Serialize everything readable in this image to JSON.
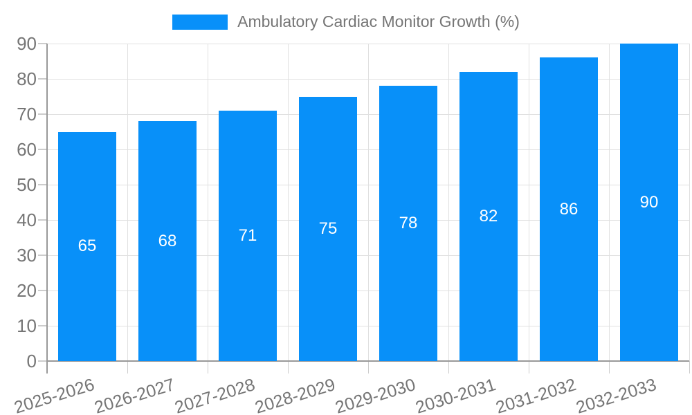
{
  "legend": {
    "label": "Ambulatory Cardiac Monitor Growth (%)"
  },
  "colors": {
    "bar": "#0890f9",
    "bar_value_label": "#ffffff",
    "grid": "#e0e0e0",
    "tick": "#cccccc",
    "axis": "#999999",
    "text": "#757575",
    "background": "#ffffff"
  },
  "chart_data": {
    "type": "bar",
    "categories": [
      "2025-2026",
      "2026-2027",
      "2027-2028",
      "2028-2029",
      "2029-2030",
      "2030-2031",
      "2031-2032",
      "2032-2033"
    ],
    "values": [
      65,
      68,
      71,
      75,
      78,
      82,
      86,
      90
    ],
    "title": "",
    "xlabel": "",
    "ylabel": "",
    "legend": "Ambulatory Cardiac Monitor Growth (%)",
    "legend_position": "top-center",
    "ylim": [
      0,
      90
    ],
    "ytick_step": 10,
    "yticks": [
      0,
      10,
      20,
      30,
      40,
      50,
      60,
      70,
      80,
      90
    ],
    "grid": "horizontal and vertical, light gray",
    "bar_labels_inside": true,
    "x_label_rotation_deg": -17
  }
}
